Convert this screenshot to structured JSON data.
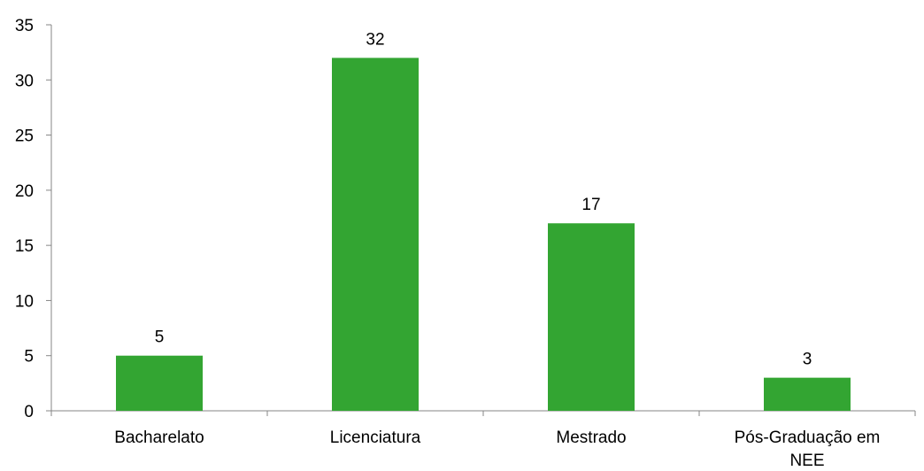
{
  "chart_data": {
    "type": "bar",
    "categories": [
      [
        "Bacharelato"
      ],
      [
        "Licenciatura"
      ],
      [
        "Mestrado"
      ],
      [
        "Pós-Graduação em",
        "NEE"
      ]
    ],
    "values": [
      5,
      32,
      17,
      3
    ],
    "data_labels": [
      "5",
      "32",
      "17",
      "3"
    ],
    "y_ticks": [
      "0",
      "5",
      "10",
      "15",
      "20",
      "25",
      "30",
      "35"
    ],
    "ylim": [
      0,
      35
    ],
    "grid": false,
    "legend": "none",
    "bar_color": "#33a532",
    "axis_color": "#868686"
  }
}
